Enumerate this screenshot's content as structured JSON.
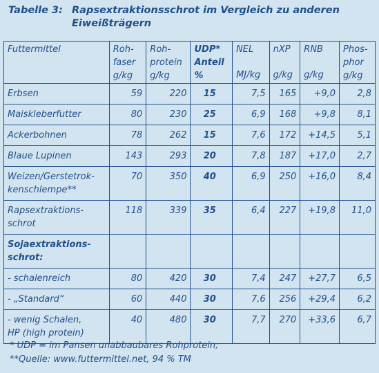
{
  "title": {
    "number": "Tabelle 3:",
    "line1": "Rapsextraktionsschrot im Vergleich zu anderen",
    "line2": "Eiweißträgern"
  },
  "columns": {
    "futtermittel": "Futtermittel",
    "rohfaser_l1": "Roh-",
    "rohfaser_l2": "faser",
    "rohfaser_unit": "g/kg",
    "rohprotein_l1": "Roh-",
    "rohprotein_l2": "protein",
    "rohprotein_unit": "g/kg",
    "udp_l1": "UDP*",
    "udp_l2": "Anteil",
    "udp_unit": "%",
    "nel": "NEL",
    "nel_unit": "MJ/kg",
    "nxp": "nXP",
    "nxp_unit": "g/kg",
    "rnb": "RNB",
    "rnb_unit": "g/kg",
    "phosphor_l1": "Phos-",
    "phosphor_l2": "phor",
    "phosphor_unit": "g/kg"
  },
  "rows": [
    {
      "name": "Erbsen",
      "name2": "",
      "rohfaser": "59",
      "rohprotein": "220",
      "udp": "15",
      "nel": "7,5",
      "nxp": "165",
      "rnb": "+9,0",
      "phosphor": "2,8"
    },
    {
      "name": "Maiskleberfutter",
      "name2": "",
      "rohfaser": "80",
      "rohprotein": "230",
      "udp": "25",
      "nel": "6,9",
      "nxp": "168",
      "rnb": "+9,8",
      "phosphor": "8,1"
    },
    {
      "name": "Ackerbohnen",
      "name2": "",
      "rohfaser": "78",
      "rohprotein": "262",
      "udp": "15",
      "nel": "7,6",
      "nxp": "172",
      "rnb": "+14,5",
      "phosphor": "5,1"
    },
    {
      "name": "Blaue Lupinen",
      "name2": "",
      "rohfaser": "143",
      "rohprotein": "293",
      "udp": "20",
      "nel": "7,8",
      "nxp": "187",
      "rnb": "+17,0",
      "phosphor": "2,7"
    },
    {
      "name": "Weizen/Gerstetrok-",
      "name2": "kenschlempe**",
      "rohfaser": "70",
      "rohprotein": "350",
      "udp": "40",
      "nel": "6,9",
      "nxp": "250",
      "rnb": "+16,0",
      "phosphor": "8,4"
    },
    {
      "name": "Rapsextraktions-",
      "name2": "schrot",
      "rohfaser": "118",
      "rohprotein": "339",
      "udp": "35",
      "nel": "6,4",
      "nxp": "227",
      "rnb": "+19,8",
      "phosphor": "11,0"
    }
  ],
  "group": {
    "line1": "Sojaextraktions-",
    "line2": "schrot:"
  },
  "soja_rows": [
    {
      "name": "- schalenreich",
      "name2": "",
      "rohfaser": "80",
      "rohprotein": "420",
      "udp": "30",
      "nel": "7,4",
      "nxp": "247",
      "rnb": "+27,7",
      "phosphor": "6,5"
    },
    {
      "name": "- „Standard“",
      "name2": "",
      "rohfaser": "60",
      "rohprotein": "440",
      "udp": "30",
      "nel": "7,6",
      "nxp": "256",
      "rnb": "+29,4",
      "phosphor": "6,2"
    },
    {
      "name": "- wenig Schalen,",
      "name2": "HP (high protein)",
      "rohfaser": "40",
      "rohprotein": "480",
      "udp": "30",
      "nel": "7,7",
      "nxp": "270",
      "rnb": "+33,6",
      "phosphor": "6,7"
    }
  ],
  "footnotes": {
    "f1": "* UDP = im Pansen unabbaubares Rohprotein;",
    "f2": "**Quelle: www.futtermittel.net, 94 % TM"
  },
  "colors": {
    "background": "#d2e4ef",
    "text": "#1f4f8c"
  }
}
